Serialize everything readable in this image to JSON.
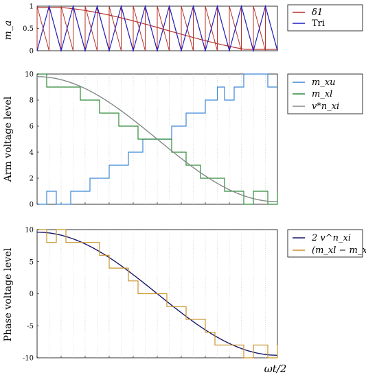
{
  "chart_data": [
    {
      "type": "line",
      "ylabel": "m_a",
      "x": [
        0,
        1
      ],
      "ylim": [
        0,
        1
      ],
      "yticks": [
        "0",
        "0.5",
        "1"
      ],
      "legend_position": "right",
      "series": [
        {
          "name": "δ1",
          "color": "#b5302a",
          "kind": "cos_and_sawtooth",
          "carrier_count": 10
        },
        {
          "name": "Tri",
          "color": "#1f1fc4",
          "kind": "triangle",
          "carrier_count": 10
        }
      ]
    },
    {
      "type": "line",
      "ylabel": "Arm voltage level",
      "ylim": [
        0,
        10
      ],
      "yticks": [
        "0",
        "2",
        "4",
        "6",
        "8",
        "10"
      ],
      "legend_position": "right",
      "series": [
        {
          "name": "m_xu",
          "color": "#3b87d6",
          "step": true,
          "x": [
            0,
            0.04,
            0.08,
            0.14,
            0.22,
            0.3,
            0.38,
            0.44,
            0.5,
            0.56,
            0.62,
            0.7,
            0.75,
            0.78,
            0.82,
            0.86,
            0.9,
            0.96,
            1.0
          ],
          "values": [
            0,
            1,
            0,
            1,
            2,
            3,
            4,
            5,
            5,
            6,
            7,
            8,
            9,
            8,
            9,
            10,
            10,
            9,
            9
          ]
        },
        {
          "name": "m_xl",
          "color": "#2e8a3a",
          "step": true,
          "x": [
            0,
            0.04,
            0.1,
            0.18,
            0.26,
            0.34,
            0.42,
            0.5,
            0.56,
            0.62,
            0.68,
            0.73,
            0.78,
            0.86,
            0.9,
            0.96,
            1.0
          ],
          "values": [
            10,
            9,
            9,
            8,
            7,
            6,
            5,
            5,
            4,
            3,
            2,
            2,
            1,
            0,
            1,
            0,
            1
          ]
        },
        {
          "name": "v*n_xi",
          "color": "#808a84",
          "kind": "cosine",
          "amplitude": 10
        }
      ]
    },
    {
      "type": "line",
      "ylabel": "Phase voltage level",
      "xlabel": "ωt/2",
      "ylim": [
        -10,
        10
      ],
      "yticks": [
        "-10",
        "-5",
        "0",
        "5",
        "10"
      ],
      "legend_position": "right",
      "series": [
        {
          "name": "2 v^n_xi",
          "color": "#16166b",
          "kind": "cosine",
          "amplitude": 10
        },
        {
          "name": "(m_xl − m_xu)",
          "color": "#c8922a",
          "step": true,
          "x": [
            0,
            0.04,
            0.08,
            0.12,
            0.18,
            0.26,
            0.3,
            0.34,
            0.38,
            0.42,
            0.46,
            0.5,
            0.54,
            0.58,
            0.62,
            0.66,
            0.7,
            0.74,
            0.78,
            0.82,
            0.86,
            0.9,
            0.96,
            1.0
          ],
          "values": [
            10,
            8,
            10,
            8,
            8,
            6,
            4,
            4,
            2,
            0,
            0,
            0,
            -2,
            -2,
            -4,
            -4,
            -6,
            -8,
            -8,
            -8,
            -10,
            -8,
            -10,
            -8
          ]
        }
      ]
    }
  ]
}
